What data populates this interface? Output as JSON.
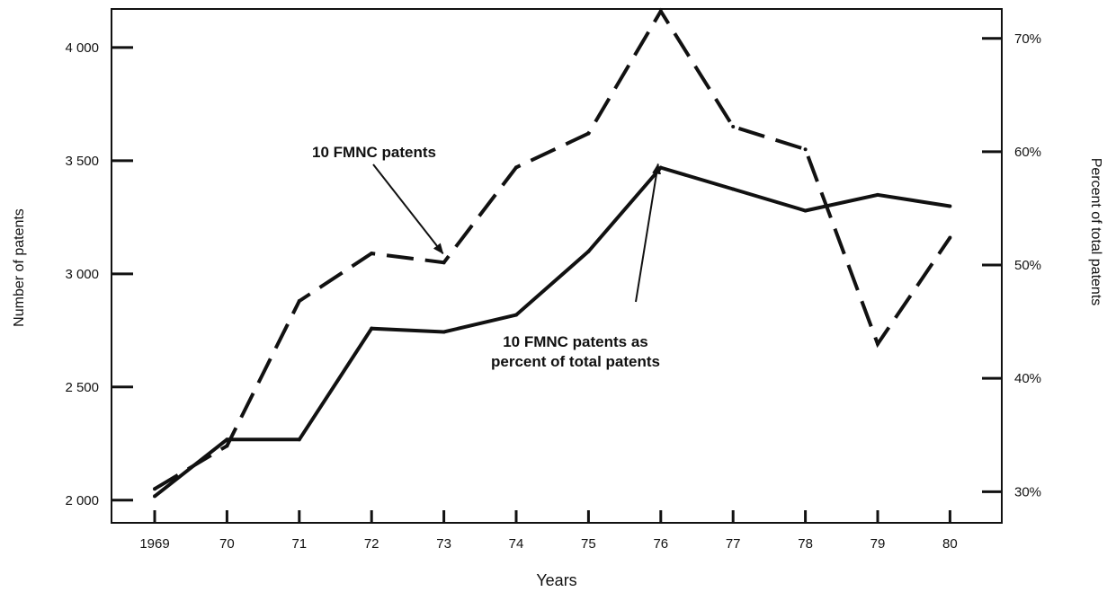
{
  "chart_data": {
    "type": "line",
    "xlabel": "Years",
    "ylabel_left": "Number of patents",
    "ylabel_right": "Percent of total patents",
    "x": [
      "1969",
      "70",
      "71",
      "72",
      "73",
      "74",
      "75",
      "76",
      "77",
      "78",
      "79",
      "80"
    ],
    "ylim_left": [
      1900,
      4170
    ],
    "ylim_right": [
      27.25,
      72.6
    ],
    "yticks_left": [
      {
        "value": 2000,
        "label": "2 000"
      },
      {
        "value": 2500,
        "label": "2 500"
      },
      {
        "value": 3000,
        "label": "3 000"
      },
      {
        "value": 3500,
        "label": "3 500"
      },
      {
        "value": 4000,
        "label": "4 000"
      }
    ],
    "yticks_right": [
      {
        "value": 30,
        "label": "30%"
      },
      {
        "value": 40,
        "label": "40%"
      },
      {
        "value": 50,
        "label": "50%"
      },
      {
        "value": 60,
        "label": "60%"
      },
      {
        "value": 70,
        "label": "70%"
      }
    ],
    "series": [
      {
        "name": "10 FMNC patents",
        "axis": "left",
        "style": "dashed",
        "values": [
          2050,
          2240,
          2880,
          3090,
          3050,
          3470,
          3620,
          4160,
          3650,
          3550,
          2690,
          3160
        ]
      },
      {
        "name": "10 FMNC patents as percent of total patents",
        "axis": "right",
        "style": "solid",
        "values": [
          29.6,
          34.6,
          34.6,
          44.4,
          44.1,
          45.6,
          51.2,
          58.6,
          56.7,
          54.8,
          56.2,
          55.2
        ]
      }
    ],
    "annotations": [
      {
        "text": "10 FMNC patents",
        "target_series": 0,
        "target_index": 4
      },
      {
        "text": "10 FMNC patents as percent of total patents",
        "lines": [
          "10 FMNC patents as",
          "percent of total patents"
        ],
        "target_series": 1,
        "target_index": 7
      }
    ],
    "grid": false,
    "legend": "none"
  }
}
